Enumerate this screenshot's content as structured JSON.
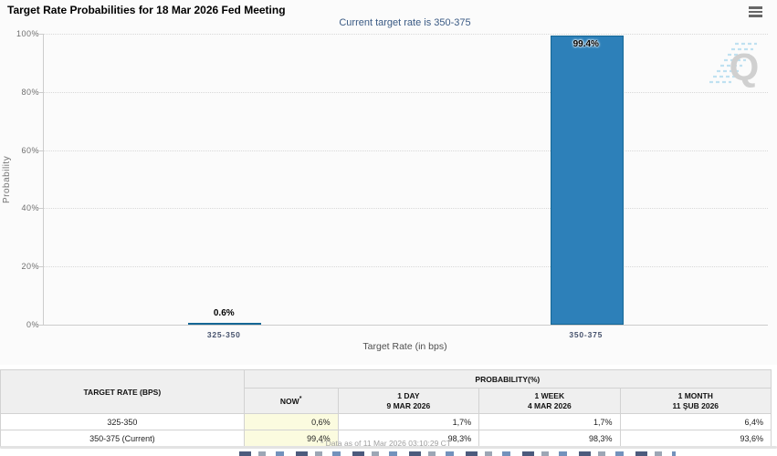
{
  "header": {
    "title": "Target Rate Probabilities for 18 Mar 2026 Fed Meeting"
  },
  "chart": {
    "subtitle": "Current target rate is 350-375",
    "watermark_letter": "Q",
    "colors": {
      "bar_fill": "#2d80b9",
      "bar_border": "#156795",
      "subtitle_text": "#3a5a84",
      "grid": "#d8d8d8",
      "now_column_bg": "#fbfbdf"
    }
  },
  "chart_data": {
    "type": "bar",
    "title": "Target Rate Probabilities for 18 Mar 2026 Fed Meeting",
    "subtitle": "Current target rate is 350-375",
    "categories": [
      "325-350",
      "350-375"
    ],
    "values": [
      0.6,
      99.4
    ],
    "value_labels": [
      "0.6%",
      "99.4%"
    ],
    "xlabel": "Target Rate (in bps)",
    "ylabel": "Probability",
    "ylim": [
      0,
      100
    ],
    "yticks": [
      0,
      20,
      40,
      60,
      80,
      100
    ],
    "ytick_labels": [
      "0%",
      "20%",
      "40%",
      "60%",
      "80%",
      "100%"
    ],
    "grid": "horizontal dotted",
    "legend": "none"
  },
  "table": {
    "col1_header": "TARGET RATE (BPS)",
    "group_header": "PROBABILITY(%)",
    "columns": [
      {
        "label": "NOW",
        "sup": "*",
        "sub": ""
      },
      {
        "label": "1 DAY",
        "sup": "",
        "sub": "9 MAR 2026"
      },
      {
        "label": "1 WEEK",
        "sup": "",
        "sub": "4 MAR 2026"
      },
      {
        "label": "1 MONTH",
        "sup": "",
        "sub": "11 ŞUB 2026"
      }
    ],
    "rows": [
      {
        "rate": "325-350",
        "now": "0,6%",
        "day": "1,7%",
        "week": "1,7%",
        "month": "6,4%"
      },
      {
        "rate": "350-375 (Current)",
        "now": "99,4%",
        "day": "98,3%",
        "week": "98,3%",
        "month": "93,6%"
      }
    ],
    "footnote": "* Data as of 11 Mar 2026 03:10:29 CT"
  }
}
